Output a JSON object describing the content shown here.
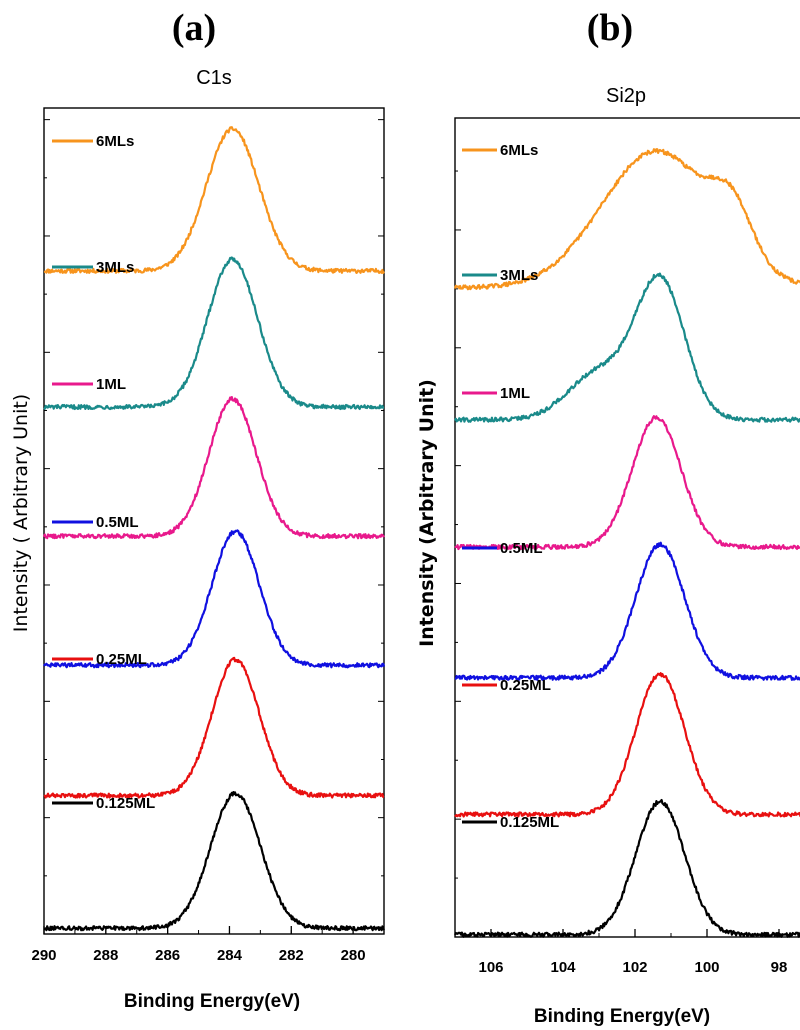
{
  "figure": {
    "panel_a_label": "(a)",
    "panel_b_label": "(b)"
  },
  "chart_data": [
    {
      "type": "line",
      "title": "C1s",
      "xlabel": "Binding Energy(eV)",
      "ylabel": "Intensity ( Arbitrary Unit)",
      "x_reversed": true,
      "xlim": [
        290,
        279
      ],
      "xticks": [
        290,
        288,
        286,
        284,
        282,
        280
      ],
      "y_ticks_labeled": false,
      "peak_model": "gaussian",
      "series": [
        {
          "name": "6MLs",
          "color": "#f7941d",
          "baseline": 5.7,
          "peak_center": 283.9,
          "peak_height": 1.22,
          "peak_fwhm": 2.0
        },
        {
          "name": "3MLs",
          "color": "#1a8a8a",
          "baseline": 4.53,
          "peak_center": 283.9,
          "peak_height": 1.27,
          "peak_fwhm": 1.9
        },
        {
          "name": "1ML",
          "color": "#e8198c",
          "baseline": 3.42,
          "peak_center": 283.9,
          "peak_height": 1.18,
          "peak_fwhm": 1.8
        },
        {
          "name": "0.5ML",
          "color": "#1010e0",
          "baseline": 2.31,
          "peak_center": 283.8,
          "peak_height": 1.15,
          "peak_fwhm": 1.8
        },
        {
          "name": "0.25ML",
          "color": "#e81010",
          "baseline": 1.19,
          "peak_center": 283.8,
          "peak_height": 1.17,
          "peak_fwhm": 1.8
        },
        {
          "name": "0.125ML",
          "color": "#000000",
          "baseline": 0.05,
          "peak_center": 283.8,
          "peak_height": 1.16,
          "peak_fwhm": 1.9
        }
      ]
    },
    {
      "type": "line",
      "title": "Si2p",
      "xlabel": "Binding Energy(eV)",
      "ylabel": "Intensity (Arbitrary Unit)",
      "x_reversed": true,
      "xlim": [
        107,
        97
      ],
      "xticks": [
        106,
        104,
        102,
        100,
        98
      ],
      "y_ticks_labeled": false,
      "peak_model": "gaussian",
      "series": [
        {
          "name": "6MLs",
          "color": "#f7941d",
          "baseline": 5.51,
          "peak_center": 101.4,
          "peak_height": 1.16,
          "peak_fwhm": 3.6,
          "shoulder_center": 99.3,
          "shoulder_height": 0.4,
          "shoulder_fwhm": 1.3
        },
        {
          "name": "3MLs",
          "color": "#1a8a8a",
          "baseline": 4.39,
          "peak_center": 101.3,
          "peak_height": 1.17,
          "peak_fwhm": 1.6,
          "shoulder_center": 103.0,
          "shoulder_height": 0.4,
          "shoulder_fwhm": 2.0
        },
        {
          "name": "1ML",
          "color": "#e8198c",
          "baseline": 3.31,
          "peak_center": 101.4,
          "peak_height": 1.1,
          "peak_fwhm": 1.6
        },
        {
          "name": "0.5ML",
          "color": "#1010e0",
          "baseline": 2.2,
          "peak_center": 101.3,
          "peak_height": 1.13,
          "peak_fwhm": 1.6
        },
        {
          "name": "0.25ML",
          "color": "#e81010",
          "baseline": 1.04,
          "peak_center": 101.3,
          "peak_height": 1.19,
          "peak_fwhm": 1.6
        },
        {
          "name": "0.125ML",
          "color": "#000000",
          "baseline": 0.02,
          "peak_center": 101.3,
          "peak_height": 1.13,
          "peak_fwhm": 1.6
        }
      ]
    }
  ]
}
